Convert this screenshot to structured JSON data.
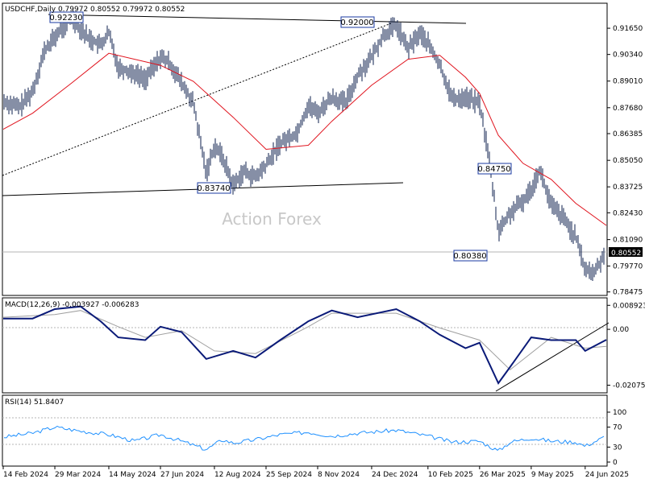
{
  "symbol": "USDCHF",
  "timeframe": "Daily",
  "ohlc": "0.79972 0.80552 0.79972 0.80552",
  "watermark": "Action Forex",
  "current_price": "0.80552",
  "colors": {
    "ma": "#e0141e",
    "macd": "#0a1a78",
    "signal": "#a0a0a0",
    "rsi": "#1e90ff",
    "trend": "#000000"
  },
  "chart_data": [
    {
      "type": "line",
      "panel": "price",
      "title": "USDCHF,Daily  0.79972 0.80552 0.79972 0.80552",
      "y_ticks": [
        "0.91650",
        "0.90340",
        "0.89010",
        "0.87680",
        "0.86385",
        "0.85050",
        "0.83725",
        "0.82430",
        "0.81090",
        "0.79770",
        "0.78475"
      ],
      "ylim": [
        0.783,
        0.929
      ],
      "x_ticks": [
        "14 Feb 2024",
        "29 Mar 2024",
        "14 May 2024",
        "27 Jun 2024",
        "12 Aug 2024",
        "25 Sep 2024",
        "8 Nov 2024",
        "24 Dec 2024",
        "10 Feb 2025",
        "26 Mar 2025",
        "9 May 2025",
        "24 Jun 2025"
      ],
      "labels": [
        "0.92230",
        "0.92000",
        "0.83740",
        "0.84750",
        "0.80380"
      ],
      "close_series": [
        {
          "x": "2024-02-14",
          "y": 0.88
        },
        {
          "x": "2024-02-28",
          "y": 0.877
        },
        {
          "x": "2024-03-10",
          "y": 0.885
        },
        {
          "x": "2024-03-20",
          "y": 0.905
        },
        {
          "x": "2024-03-29",
          "y": 0.912
        },
        {
          "x": "2024-04-12",
          "y": 0.922
        },
        {
          "x": "2024-04-26",
          "y": 0.912
        },
        {
          "x": "2024-05-07",
          "y": 0.908
        },
        {
          "x": "2024-05-14",
          "y": 0.914
        },
        {
          "x": "2024-05-22",
          "y": 0.897
        },
        {
          "x": "2024-06-05",
          "y": 0.894
        },
        {
          "x": "2024-06-14",
          "y": 0.891
        },
        {
          "x": "2024-06-27",
          "y": 0.902
        },
        {
          "x": "2024-07-05",
          "y": 0.899
        },
        {
          "x": "2024-07-15",
          "y": 0.889
        },
        {
          "x": "2024-07-25",
          "y": 0.879
        },
        {
          "x": "2024-08-05",
          "y": 0.844
        },
        {
          "x": "2024-08-12",
          "y": 0.858
        },
        {
          "x": "2024-08-19",
          "y": 0.852
        },
        {
          "x": "2024-08-28",
          "y": 0.838
        },
        {
          "x": "2024-09-06",
          "y": 0.845
        },
        {
          "x": "2024-09-16",
          "y": 0.842
        },
        {
          "x": "2024-09-25",
          "y": 0.848
        },
        {
          "x": "2024-10-07",
          "y": 0.859
        },
        {
          "x": "2024-10-21",
          "y": 0.864
        },
        {
          "x": "2024-10-31",
          "y": 0.878
        },
        {
          "x": "2024-11-08",
          "y": 0.874
        },
        {
          "x": "2024-11-20",
          "y": 0.882
        },
        {
          "x": "2024-12-02",
          "y": 0.879
        },
        {
          "x": "2024-12-12",
          "y": 0.893
        },
        {
          "x": "2024-12-24",
          "y": 0.902
        },
        {
          "x": "2025-01-03",
          "y": 0.913
        },
        {
          "x": "2025-01-14",
          "y": 0.918
        },
        {
          "x": "2025-01-24",
          "y": 0.906
        },
        {
          "x": "2025-02-03",
          "y": 0.914
        },
        {
          "x": "2025-02-10",
          "y": 0.909
        },
        {
          "x": "2025-02-20",
          "y": 0.898
        },
        {
          "x": "2025-03-03",
          "y": 0.881
        },
        {
          "x": "2025-03-14",
          "y": 0.882
        },
        {
          "x": "2025-03-26",
          "y": 0.879
        },
        {
          "x": "2025-04-03",
          "y": 0.852
        },
        {
          "x": "2025-04-11",
          "y": 0.815
        },
        {
          "x": "2025-04-21",
          "y": 0.824
        },
        {
          "x": "2025-05-02",
          "y": 0.83
        },
        {
          "x": "2025-05-09",
          "y": 0.836
        },
        {
          "x": "2025-05-16",
          "y": 0.846
        },
        {
          "x": "2025-05-26",
          "y": 0.828
        },
        {
          "x": "2025-06-05",
          "y": 0.822
        },
        {
          "x": "2025-06-16",
          "y": 0.812
        },
        {
          "x": "2025-06-24",
          "y": 0.796
        },
        {
          "x": "2025-07-01",
          "y": 0.794
        },
        {
          "x": "2025-07-08",
          "y": 0.801
        },
        {
          "x": "2025-07-12",
          "y": 0.8055
        }
      ],
      "ma_series": [
        {
          "x": "2024-02-14",
          "y": 0.866
        },
        {
          "x": "2024-03-10",
          "y": 0.874
        },
        {
          "x": "2024-04-12",
          "y": 0.889
        },
        {
          "x": "2024-05-14",
          "y": 0.904
        },
        {
          "x": "2024-06-27",
          "y": 0.898
        },
        {
          "x": "2024-07-25",
          "y": 0.89
        },
        {
          "x": "2024-08-28",
          "y": 0.872
        },
        {
          "x": "2024-09-25",
          "y": 0.856
        },
        {
          "x": "2024-10-31",
          "y": 0.858
        },
        {
          "x": "2024-11-20",
          "y": 0.87
        },
        {
          "x": "2024-12-24",
          "y": 0.888
        },
        {
          "x": "2025-01-24",
          "y": 0.901
        },
        {
          "x": "2025-02-20",
          "y": 0.903
        },
        {
          "x": "2025-03-14",
          "y": 0.892
        },
        {
          "x": "2025-03-26",
          "y": 0.884
        },
        {
          "x": "2025-04-11",
          "y": 0.863
        },
        {
          "x": "2025-05-02",
          "y": 0.849
        },
        {
          "x": "2025-05-26",
          "y": 0.841
        },
        {
          "x": "2025-06-16",
          "y": 0.829
        },
        {
          "x": "2025-07-12",
          "y": 0.818
        }
      ]
    },
    {
      "type": "line",
      "panel": "macd",
      "title": "MACD(12,26,9) -0.003927 -0.006283",
      "y_ticks": [
        "0.008923",
        "0.00",
        "-0.020759"
      ],
      "ylim": [
        -0.0236,
        0.0117
      ],
      "macd_series": [
        {
          "x": "2024-02-14",
          "y": 0.004
        },
        {
          "x": "2024-03-10",
          "y": 0.004
        },
        {
          "x": "2024-03-29",
          "y": 0.0075
        },
        {
          "x": "2024-04-20",
          "y": 0.0085
        },
        {
          "x": "2024-05-07",
          "y": 0.003
        },
        {
          "x": "2024-05-22",
          "y": -0.003
        },
        {
          "x": "2024-06-14",
          "y": -0.004
        },
        {
          "x": "2024-06-27",
          "y": 0.001
        },
        {
          "x": "2024-07-15",
          "y": -0.001
        },
        {
          "x": "2024-08-05",
          "y": -0.011
        },
        {
          "x": "2024-08-28",
          "y": -0.008
        },
        {
          "x": "2024-09-16",
          "y": -0.0105
        },
        {
          "x": "2024-10-07",
          "y": -0.004
        },
        {
          "x": "2024-10-31",
          "y": 0.003
        },
        {
          "x": "2024-11-20",
          "y": 0.007
        },
        {
          "x": "2024-12-12",
          "y": 0.0045
        },
        {
          "x": "2025-01-14",
          "y": 0.0075
        },
        {
          "x": "2025-02-03",
          "y": 0.003
        },
        {
          "x": "2025-02-20",
          "y": -0.002
        },
        {
          "x": "2025-03-14",
          "y": -0.007
        },
        {
          "x": "2025-03-26",
          "y": -0.005
        },
        {
          "x": "2025-04-11",
          "y": -0.02
        },
        {
          "x": "2025-04-21",
          "y": -0.014
        },
        {
          "x": "2025-05-09",
          "y": -0.003
        },
        {
          "x": "2025-05-26",
          "y": -0.004
        },
        {
          "x": "2025-06-16",
          "y": -0.004
        },
        {
          "x": "2025-06-24",
          "y": -0.008
        },
        {
          "x": "2025-07-12",
          "y": -0.0039
        }
      ],
      "signal_series": [
        {
          "x": "2024-02-14",
          "y": 0.0045
        },
        {
          "x": "2024-03-29",
          "y": 0.0055
        },
        {
          "x": "2024-04-20",
          "y": 0.007
        },
        {
          "x": "2024-05-22",
          "y": 0.001
        },
        {
          "x": "2024-06-14",
          "y": -0.003
        },
        {
          "x": "2024-07-15",
          "y": -0.0005
        },
        {
          "x": "2024-08-12",
          "y": -0.008
        },
        {
          "x": "2024-09-16",
          "y": -0.009
        },
        {
          "x": "2024-10-31",
          "y": 0.001
        },
        {
          "x": "2024-11-20",
          "y": 0.006
        },
        {
          "x": "2025-01-14",
          "y": 0.006
        },
        {
          "x": "2025-02-20",
          "y": 0.0005
        },
        {
          "x": "2025-03-26",
          "y": -0.004
        },
        {
          "x": "2025-04-21",
          "y": -0.015
        },
        {
          "x": "2025-05-26",
          "y": -0.003
        },
        {
          "x": "2025-06-24",
          "y": -0.007
        },
        {
          "x": "2025-07-12",
          "y": -0.0063
        }
      ]
    },
    {
      "type": "line",
      "panel": "rsi",
      "title": "RSI(14) 51.8407",
      "y_ticks": [
        "100",
        "70",
        "30",
        "0"
      ],
      "ylim": [
        0,
        100
      ],
      "rsi_series": [
        {
          "x": "2024-02-14",
          "y": 50
        },
        {
          "x": "2024-03-10",
          "y": 58
        },
        {
          "x": "2024-03-29",
          "y": 70
        },
        {
          "x": "2024-04-20",
          "y": 62
        },
        {
          "x": "2024-05-14",
          "y": 55
        },
        {
          "x": "2024-06-05",
          "y": 42
        },
        {
          "x": "2024-06-27",
          "y": 55
        },
        {
          "x": "2024-07-15",
          "y": 42
        },
        {
          "x": "2024-08-05",
          "y": 25
        },
        {
          "x": "2024-08-19",
          "y": 45
        },
        {
          "x": "2024-08-28",
          "y": 38
        },
        {
          "x": "2024-09-16",
          "y": 45
        },
        {
          "x": "2024-10-07",
          "y": 55
        },
        {
          "x": "2024-10-31",
          "y": 60
        },
        {
          "x": "2024-11-20",
          "y": 52
        },
        {
          "x": "2024-12-12",
          "y": 58
        },
        {
          "x": "2025-01-14",
          "y": 64
        },
        {
          "x": "2025-02-10",
          "y": 52
        },
        {
          "x": "2025-03-03",
          "y": 40
        },
        {
          "x": "2025-03-26",
          "y": 42
        },
        {
          "x": "2025-04-11",
          "y": 22
        },
        {
          "x": "2025-04-21",
          "y": 40
        },
        {
          "x": "2025-05-09",
          "y": 48
        },
        {
          "x": "2025-05-26",
          "y": 42
        },
        {
          "x": "2025-06-16",
          "y": 40
        },
        {
          "x": "2025-06-24",
          "y": 32
        },
        {
          "x": "2025-07-12",
          "y": 51.84
        }
      ]
    }
  ]
}
